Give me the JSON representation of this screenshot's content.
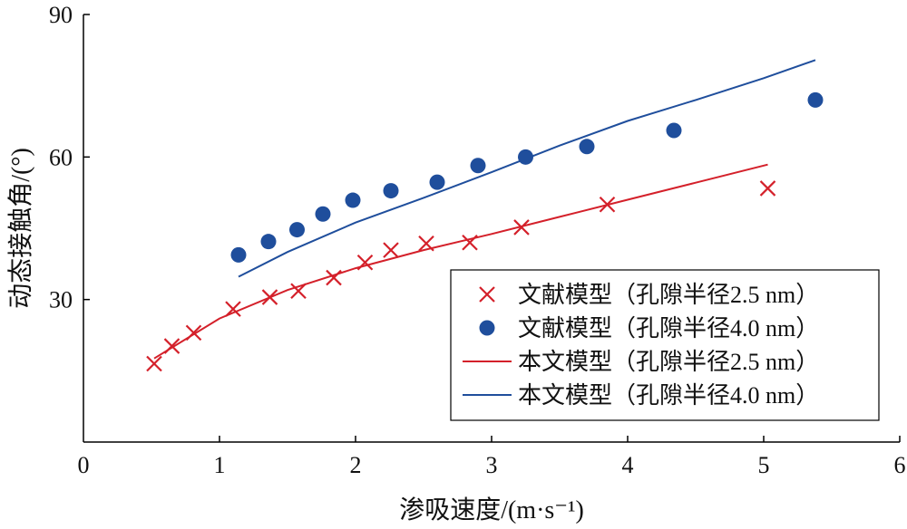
{
  "chart_data": {
    "type": "scatter",
    "title": "",
    "xlabel": "渗吸速度/(m·s⁻¹)",
    "ylabel": "动态接触角/(°)",
    "xlim": [
      0,
      6
    ],
    "ylim": [
      0,
      90
    ],
    "x_ticks": [
      "0",
      "1",
      "2",
      "3",
      "4",
      "5",
      "6"
    ],
    "y_ticks": [
      "30",
      "60",
      "90"
    ],
    "grid": false,
    "legend_position": "bottom-right",
    "series": [
      {
        "name": "文献模型（孔隙半径2.5 nm）",
        "kind": "scatter",
        "marker": "x",
        "color": "#d4202a",
        "points": [
          {
            "x": 0.52,
            "y": 16.5
          },
          {
            "x": 0.65,
            "y": 20.2
          },
          {
            "x": 0.81,
            "y": 23.0
          },
          {
            "x": 1.1,
            "y": 28.0
          },
          {
            "x": 1.37,
            "y": 30.5
          },
          {
            "x": 1.58,
            "y": 31.8
          },
          {
            "x": 1.84,
            "y": 34.6
          },
          {
            "x": 2.07,
            "y": 37.8
          },
          {
            "x": 2.26,
            "y": 40.4
          },
          {
            "x": 2.52,
            "y": 41.8
          },
          {
            "x": 2.84,
            "y": 42.0
          },
          {
            "x": 3.22,
            "y": 45.2
          },
          {
            "x": 3.85,
            "y": 50.0
          },
          {
            "x": 5.03,
            "y": 53.4
          }
        ]
      },
      {
        "name": "文献模型（孔隙半径4.0 nm）",
        "kind": "scatter",
        "marker": "circle",
        "color": "#1f4e9c",
        "points": [
          {
            "x": 1.14,
            "y": 39.4
          },
          {
            "x": 1.36,
            "y": 42.2
          },
          {
            "x": 1.57,
            "y": 44.7
          },
          {
            "x": 1.76,
            "y": 48.0
          },
          {
            "x": 1.98,
            "y": 50.9
          },
          {
            "x": 2.26,
            "y": 52.9
          },
          {
            "x": 2.6,
            "y": 54.7
          },
          {
            "x": 2.9,
            "y": 58.2
          },
          {
            "x": 3.25,
            "y": 60.0
          },
          {
            "x": 3.7,
            "y": 62.2
          },
          {
            "x": 4.34,
            "y": 65.6
          },
          {
            "x": 5.38,
            "y": 72.0
          }
        ]
      },
      {
        "name": "本文模型（孔隙半径2.5 nm）",
        "kind": "line",
        "color": "#d4202a",
        "points": [
          {
            "x": 0.52,
            "y": 17.6
          },
          {
            "x": 1.0,
            "y": 26.0
          },
          {
            "x": 1.5,
            "y": 32.0
          },
          {
            "x": 2.0,
            "y": 36.6
          },
          {
            "x": 2.5,
            "y": 40.4
          },
          {
            "x": 3.0,
            "y": 43.8
          },
          {
            "x": 3.5,
            "y": 47.4
          },
          {
            "x": 4.0,
            "y": 51.0
          },
          {
            "x": 4.5,
            "y": 54.6
          },
          {
            "x": 5.03,
            "y": 58.4
          }
        ]
      },
      {
        "name": "本文模型（孔隙半径4.0 nm）",
        "kind": "line",
        "color": "#1f4e9c",
        "points": [
          {
            "x": 1.14,
            "y": 34.8
          },
          {
            "x": 1.5,
            "y": 40.0
          },
          {
            "x": 2.0,
            "y": 46.2
          },
          {
            "x": 2.5,
            "y": 51.4
          },
          {
            "x": 3.0,
            "y": 56.8
          },
          {
            "x": 3.5,
            "y": 62.4
          },
          {
            "x": 4.0,
            "y": 67.6
          },
          {
            "x": 4.5,
            "y": 72.0
          },
          {
            "x": 5.0,
            "y": 76.6
          },
          {
            "x": 5.38,
            "y": 80.4
          }
        ]
      }
    ]
  }
}
